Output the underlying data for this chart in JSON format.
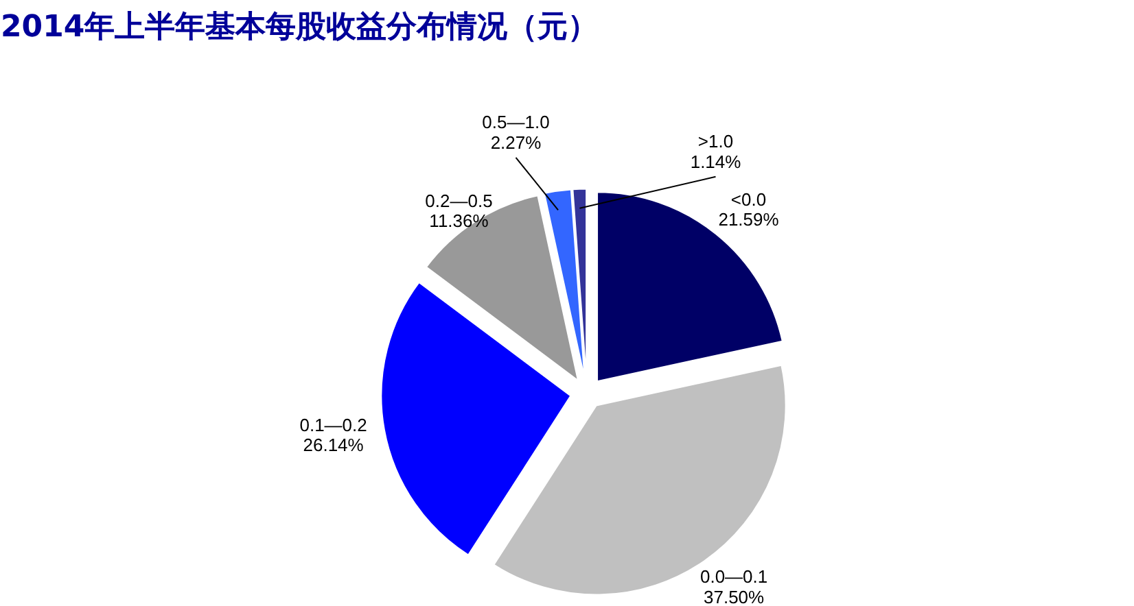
{
  "chart_data": {
    "type": "pie",
    "title": "2014年上半年基本每股收益分布情况（元）",
    "categories": [
      "<0.0",
      "0.0—0.1",
      "0.1—0.2",
      "0.2—0.5",
      "0.5—1.0",
      ">1.0"
    ],
    "values": [
      21.59,
      37.5,
      26.14,
      11.36,
      2.27,
      1.14
    ],
    "colors": [
      "#000066",
      "#c0c0c0",
      "#0000ff",
      "#999999",
      "#3366ff",
      "#333399"
    ],
    "value_labels": [
      "21.59%",
      "37.50%",
      "26.14%",
      "11.36%",
      "2.27%",
      "1.14%"
    ]
  }
}
